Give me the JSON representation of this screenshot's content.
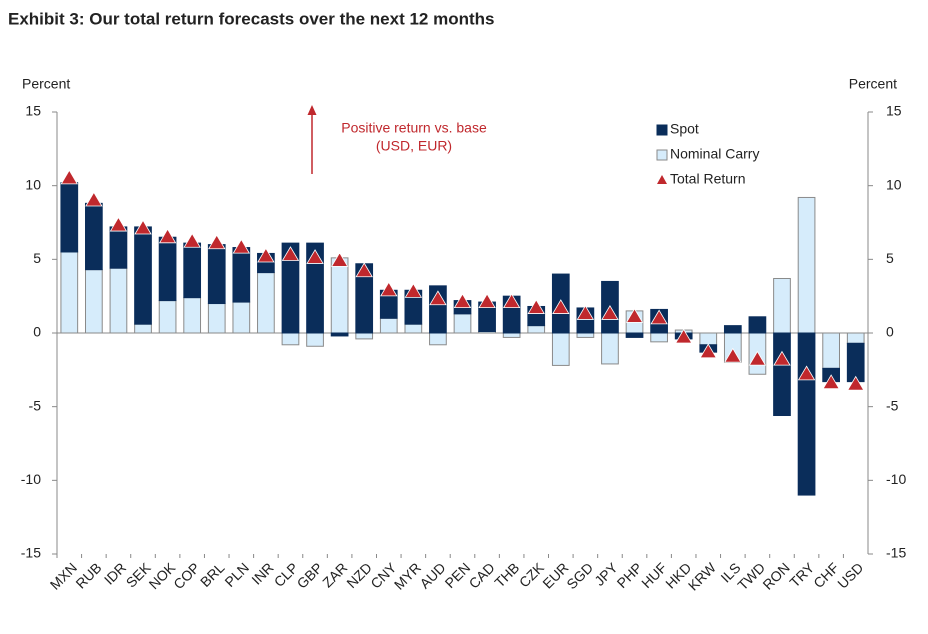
{
  "chart_data": {
    "type": "stacked_bar",
    "title": "Exhibit 3: Our total return forecasts over the next 12 months",
    "ylabel": "Percent",
    "y2label": "Percent",
    "annotations": [
      "Positive return vs. base",
      "(USD, EUR)"
    ],
    "annotation_color": "#c0282d",
    "categories": [
      "MXN",
      "RUB",
      "IDR",
      "SEK",
      "NOK",
      "COP",
      "BRL",
      "PLN",
      "INR",
      "CLP",
      "GBP",
      "ZAR",
      "NZD",
      "CNY",
      "MYR",
      "AUD",
      "PEN",
      "CAD",
      "THB",
      "CZK",
      "EUR",
      "SGD",
      "JPY",
      "PHP",
      "HUF",
      "HKD",
      "KRW",
      "ILS",
      "TWD",
      "RON",
      "TRY",
      "CHF",
      "USD"
    ],
    "series": [
      {
        "name": "Spot",
        "color": "#0a2d5a",
        "values": [
          4.7,
          4.5,
          2.8,
          6.6,
          4.3,
          3.7,
          4.0,
          3.7,
          1.3,
          6.1,
          6.1,
          -0.2,
          4.7,
          1.9,
          2.3,
          3.2,
          0.9,
          2.0,
          2.5,
          1.3,
          4.0,
          1.7,
          3.5,
          -0.3,
          1.6,
          -0.4,
          -0.5,
          0.5,
          1.1,
          -5.6,
          -11.0,
          -0.9,
          -2.6
        ]
      },
      {
        "name": "Nominal Carry",
        "color": "#d6ecfb",
        "values": [
          5.5,
          4.3,
          4.4,
          0.6,
          2.2,
          2.4,
          2.0,
          2.1,
          4.1,
          -0.8,
          -0.9,
          5.1,
          -0.4,
          1.0,
          0.6,
          -0.8,
          1.3,
          0.1,
          -0.3,
          0.5,
          -2.2,
          -0.3,
          -2.1,
          1.5,
          -0.6,
          0.2,
          -0.8,
          -2.0,
          -2.8,
          3.7,
          9.2,
          -2.4,
          -0.7
        ]
      },
      {
        "name": "Total Return",
        "color": "#c0282d",
        "marker": "triangle",
        "values": [
          10.5,
          9.0,
          7.3,
          7.1,
          6.5,
          6.2,
          6.1,
          5.8,
          5.2,
          5.3,
          5.1,
          4.9,
          4.2,
          2.9,
          2.8,
          2.3,
          2.1,
          2.1,
          2.1,
          1.7,
          1.7,
          1.3,
          1.3,
          1.1,
          1.0,
          -0.3,
          -1.3,
          -1.6,
          -1.8,
          -1.8,
          -2.8,
          -3.4,
          -3.5
        ]
      }
    ],
    "ylim": [
      -15,
      15
    ],
    "yticks": [
      15,
      10,
      5,
      0,
      -5,
      -10,
      -15
    ],
    "y2lim": [
      -15,
      15
    ],
    "y2ticks": [
      15,
      10,
      5,
      0,
      -5,
      -10,
      -15
    ],
    "grid": false
  }
}
